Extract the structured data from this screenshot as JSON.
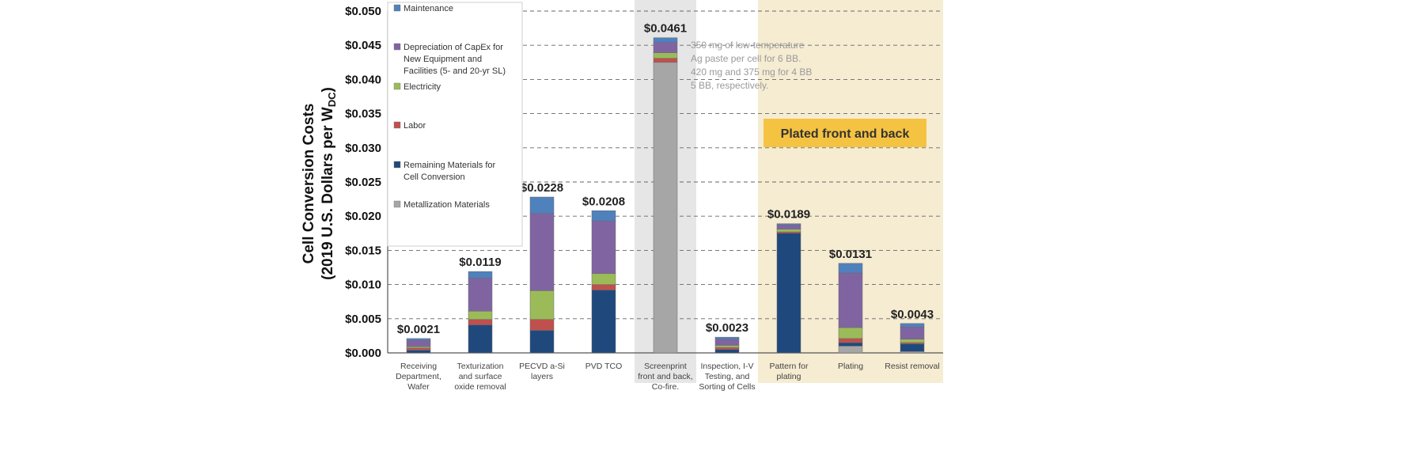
{
  "chart_data": {
    "type": "bar",
    "stacked": true,
    "ylabel_line1": "Cell Conversion Costs",
    "ylabel_line2_prefix": "(2019 U.S. Dollars per W",
    "ylabel_line2_sub": "DC",
    "ylabel_line2_suffix": ")",
    "ylim": [
      0,
      0.05
    ],
    "yticks": [
      0,
      0.005,
      0.01,
      0.015,
      0.02,
      0.025,
      0.03,
      0.035,
      0.04,
      0.045,
      0.05
    ],
    "ytick_labels": [
      "$0.000",
      "$0.005",
      "$0.010",
      "$0.015",
      "$0.020",
      "$0.025",
      "$0.030",
      "$0.035",
      "$0.040",
      "$0.045",
      "$0.050"
    ],
    "grid": "dashed horizontal",
    "legend_position": "top-left",
    "categories": [
      [
        "Receiving",
        "Department,",
        "Wafer"
      ],
      [
        "Texturization",
        "and surface",
        "oxide removal"
      ],
      [
        "PECVD a-Si",
        "layers"
      ],
      [
        "PVD TCO"
      ],
      [
        "Screenprint",
        "front and back,",
        "Co-fire."
      ],
      [
        "Inspection, I-V",
        "Testing, and",
        "Sorting of Cells"
      ],
      [
        "Pattern for",
        "plating"
      ],
      [
        "Plating"
      ],
      [
        "Resist removal"
      ]
    ],
    "totals": [
      "$0.0021",
      "$0.0119",
      "$0.0228",
      "$0.0208",
      "$0.0461",
      "$0.0023",
      "$0.0189",
      "$0.0131",
      "$0.0043"
    ],
    "series": [
      {
        "name": "Metallization Materials",
        "color": "#a6a6a6",
        "values": [
          0,
          0,
          0,
          0,
          0.0425,
          0,
          0,
          0.001,
          0.0002
        ]
      },
      {
        "name": "Remaining Materials for Cell Conversion",
        "color": "#1f497d",
        "values": [
          0.0004,
          0.0041,
          0.0033,
          0.0092,
          0,
          0.0005,
          0.0175,
          0.0005,
          0.0011
        ]
      },
      {
        "name": "Labor",
        "color": "#c0504d",
        "values": [
          0.0003,
          0.0008,
          0.0016,
          0.0008,
          0.0006,
          0.0003,
          0.0002,
          0.0006,
          0.0002
        ]
      },
      {
        "name": "Electricity",
        "color": "#9bbb59",
        "values": [
          0.0002,
          0.0012,
          0.0042,
          0.0016,
          0.0008,
          0.0003,
          0.0004,
          0.0016,
          0.0005
        ]
      },
      {
        "name": "Depreciation of CapEx for New Equipment and Facilities (5- and 20-yr SL)",
        "color": "#8064a2",
        "values": [
          0.0009,
          0.0048,
          0.0113,
          0.0077,
          0.0015,
          0.0009,
          0.0006,
          0.008,
          0.0018
        ]
      },
      {
        "name": "Maintenance",
        "color": "#4f81bd",
        "values": [
          0.0003,
          0.001,
          0.0024,
          0.0015,
          0.0007,
          0.0003,
          0.0002,
          0.0014,
          0.0005
        ]
      }
    ],
    "legend": [
      {
        "lines": [
          "Maintenance"
        ],
        "color": "#4f81bd"
      },
      {
        "lines": [
          "Depreciation of CapEx for",
          "New Equipment and",
          "Facilities (5- and 20-yr SL)"
        ],
        "color": "#8064a2"
      },
      {
        "lines": [
          "Electricity"
        ],
        "color": "#9bbb59"
      },
      {
        "lines": [
          "Labor"
        ],
        "color": "#c0504d"
      },
      {
        "lines": [
          "Remaining Materials for",
          "Cell Conversion"
        ],
        "color": "#1f497d"
      },
      {
        "lines": [
          "Metallization Materials"
        ],
        "color": "#a6a6a6"
      }
    ],
    "annotation": {
      "lines": [
        "350 mg of low-temperature",
        "Ag paste per cell for 6 BB.",
        "420 mg and 375 mg for 4 BB",
        "5 BB, respectively."
      ]
    },
    "highlight": {
      "screenprint_band_color": "#e6e6e6",
      "plated_band_color": "#f6ecd2",
      "banner_text": "Plated front and back",
      "banner_color": "#f5c342"
    }
  }
}
